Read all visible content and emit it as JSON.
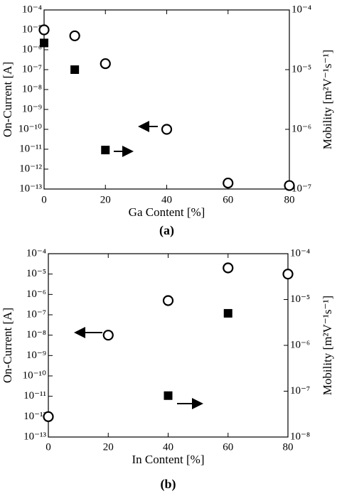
{
  "chart_data": [
    {
      "type": "scatter",
      "caption": "(a)",
      "xlabel": "Ga Content [%]",
      "ylabel": "On-Current [A]",
      "y2label": "Mobility [m²V⁻¹s⁻¹]",
      "xlim": [
        0,
        80
      ],
      "xticks": [
        0,
        20,
        40,
        60,
        80
      ],
      "yscale": "log",
      "ylim": [
        1e-13,
        0.0001
      ],
      "yticks": [
        {
          "value": 1e-13,
          "label": "10⁻¹³"
        },
        {
          "value": 1e-12,
          "label": "10⁻¹²"
        },
        {
          "value": 1e-11,
          "label": "10⁻¹¹"
        },
        {
          "value": 1e-10,
          "label": "10⁻¹⁰"
        },
        {
          "value": 1e-09,
          "label": "10⁻⁹"
        },
        {
          "value": 1e-08,
          "label": "10⁻⁸"
        },
        {
          "value": 1e-07,
          "label": "10⁻⁷"
        },
        {
          "value": 1e-06,
          "label": "10⁻⁶"
        },
        {
          "value": 1e-05,
          "label": "10⁻⁵"
        },
        {
          "value": 0.0001,
          "label": "10⁻⁴"
        }
      ],
      "y2scale": "log",
      "y2lim": [
        1e-07,
        0.0001
      ],
      "y2ticks": [
        {
          "value": 1e-07,
          "label": "10⁻⁷"
        },
        {
          "value": 1e-06,
          "label": "10⁻⁶"
        },
        {
          "value": 1e-05,
          "label": "10⁻⁵"
        },
        {
          "value": 0.0001,
          "label": "10⁻⁴"
        }
      ],
      "series": [
        {
          "marker": "open-circle",
          "color": "#000000",
          "axis": "y",
          "x": [
            0,
            10,
            20,
            40,
            60,
            80
          ],
          "values": [
            1e-05,
            5e-06,
            2e-07,
            1e-10,
            2e-13,
            1.5e-13
          ]
        },
        {
          "marker": "square",
          "color": "#000000",
          "axis": "y2",
          "x": [
            0,
            10,
            20
          ],
          "values": [
            2.8e-05,
            1e-05,
            4.5e-07
          ]
        }
      ]
    },
    {
      "type": "scatter",
      "caption": "(b)",
      "xlabel": "In Content [%]",
      "ylabel": "On-Current [A]",
      "y2label": "Mobility [m²V⁻¹s⁻¹]",
      "xlim": [
        0,
        80
      ],
      "xticks": [
        0,
        20,
        40,
        60,
        80
      ],
      "yscale": "log",
      "ylim": [
        1e-13,
        0.0001
      ],
      "yticks": [
        {
          "value": 1e-13,
          "label": "10⁻¹³"
        },
        {
          "value": 1e-12,
          "label": "10⁻¹²"
        },
        {
          "value": 1e-11,
          "label": "10⁻¹¹"
        },
        {
          "value": 1e-10,
          "label": "10⁻¹⁰"
        },
        {
          "value": 1e-09,
          "label": "10⁻⁹"
        },
        {
          "value": 1e-08,
          "label": "10⁻⁸"
        },
        {
          "value": 1e-07,
          "label": "10⁻⁷"
        },
        {
          "value": 1e-06,
          "label": "10⁻⁶"
        },
        {
          "value": 1e-05,
          "label": "10⁻⁵"
        },
        {
          "value": 0.0001,
          "label": "10⁻⁴"
        }
      ],
      "y2scale": "log",
      "y2lim": [
        1e-08,
        0.0001
      ],
      "y2ticks": [
        {
          "value": 1e-08,
          "label": "10⁻⁸"
        },
        {
          "value": 1e-07,
          "label": "10⁻⁷"
        },
        {
          "value": 1e-06,
          "label": "10⁻⁶"
        },
        {
          "value": 1e-05,
          "label": "10⁻⁵"
        },
        {
          "value": 0.0001,
          "label": "10⁻⁴"
        }
      ],
      "series": [
        {
          "marker": "open-circle",
          "color": "#000000",
          "axis": "y",
          "x": [
            0,
            20,
            40,
            60,
            80
          ],
          "values": [
            1e-12,
            1e-08,
            5e-07,
            2e-05,
            1e-05
          ]
        },
        {
          "marker": "square",
          "color": "#000000",
          "axis": "y2",
          "x": [
            40,
            60
          ],
          "values": [
            8e-08,
            5e-06
          ]
        }
      ]
    }
  ]
}
